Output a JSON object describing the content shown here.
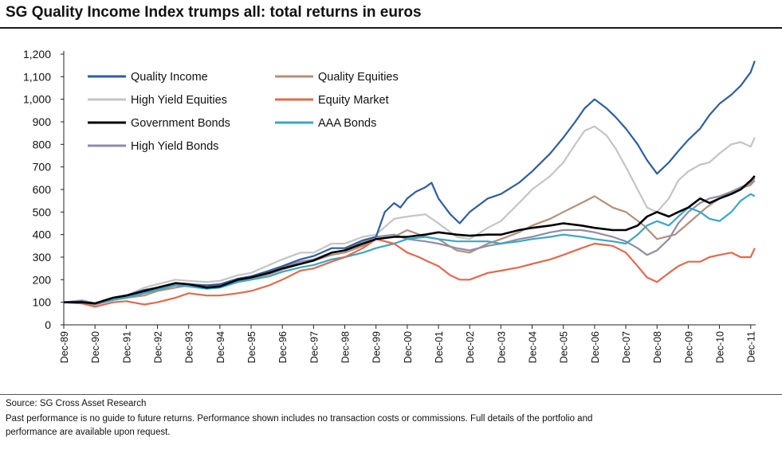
{
  "chart_data": {
    "type": "line",
    "title": "SG Quality Income Index trumps all: total returns in euros",
    "xlabel": "",
    "ylabel": "",
    "ylim": [
      0,
      1200
    ],
    "yticks": [
      "0",
      "100",
      "200",
      "300",
      "400",
      "500",
      "600",
      "700",
      "800",
      "900",
      "1,000",
      "1,100",
      "1,200"
    ],
    "xlim": [
      1989.92,
      2012.08
    ],
    "xticks": [
      "Dec-89",
      "Dec-90",
      "Dec-91",
      "Dec-92",
      "Dec-93",
      "Dec-94",
      "Dec-95",
      "Dec-96",
      "Dec-97",
      "Dec-98",
      "Dec-99",
      "Dec-00",
      "Dec-01",
      "Dec-02",
      "Dec-03",
      "Dec-04",
      "Dec-05",
      "Dec-06",
      "Dec-07",
      "Dec-08",
      "Dec-09",
      "Dec-10",
      "Dec-11"
    ],
    "grid": false,
    "legend_placement": "top-left",
    "series": [
      {
        "name": "Quality Income",
        "color": "#2e5e9e",
        "x": [
          1989.92,
          1990.5,
          1990.92,
          1991.5,
          1991.92,
          1992.5,
          1992.92,
          1993.5,
          1993.92,
          1994.5,
          1994.92,
          1995.5,
          1995.92,
          1996.5,
          1996.92,
          1997.5,
          1997.92,
          1998.5,
          1998.92,
          1999.5,
          1999.92,
          2000.2,
          2000.5,
          2000.7,
          2000.92,
          2001.2,
          2001.5,
          2001.7,
          2001.92,
          2002.3,
          2002.6,
          2002.92,
          2003.5,
          2003.92,
          2004.5,
          2004.92,
          2005.5,
          2005.92,
          2006.3,
          2006.6,
          2006.92,
          2007.3,
          2007.6,
          2007.92,
          2008.3,
          2008.6,
          2008.92,
          2009.3,
          2009.6,
          2009.92,
          2010.3,
          2010.6,
          2010.92,
          2011.3,
          2011.6,
          2011.92,
          2012.05
        ],
        "y": [
          100,
          105,
          95,
          120,
          130,
          155,
          165,
          185,
          180,
          175,
          180,
          205,
          215,
          240,
          260,
          290,
          305,
          340,
          340,
          375,
          390,
          500,
          540,
          520,
          560,
          590,
          610,
          630,
          560,
          490,
          450,
          500,
          560,
          580,
          630,
          680,
          760,
          830,
          900,
          960,
          1000,
          960,
          920,
          870,
          800,
          730,
          670,
          720,
          770,
          820,
          870,
          930,
          980,
          1020,
          1060,
          1120,
          1170
        ]
      },
      {
        "name": "Quality Equities",
        "color": "#b38f7c",
        "x": [
          1989.92,
          1990.5,
          1990.92,
          1991.5,
          1991.92,
          1992.5,
          1992.92,
          1993.5,
          1993.92,
          1994.5,
          1994.92,
          1995.5,
          1995.92,
          1996.5,
          1996.92,
          1997.5,
          1997.92,
          1998.5,
          1998.92,
          1999.5,
          1999.92,
          2000.5,
          2000.92,
          2001.5,
          2001.92,
          2002.5,
          2002.92,
          2003.5,
          2003.92,
          2004.5,
          2004.92,
          2005.5,
          2005.92,
          2006.5,
          2006.92,
          2007.5,
          2007.92,
          2008.5,
          2008.92,
          2009.5,
          2009.92,
          2010.5,
          2010.92,
          2011.5,
          2011.92,
          2012.05
        ],
        "y": [
          100,
          100,
          90,
          110,
          120,
          130,
          150,
          165,
          175,
          170,
          170,
          190,
          205,
          225,
          245,
          270,
          285,
          310,
          320,
          350,
          380,
          390,
          420,
          390,
          380,
          330,
          320,
          360,
          380,
          410,
          440,
          470,
          500,
          540,
          570,
          520,
          500,
          440,
          380,
          400,
          450,
          520,
          560,
          600,
          620,
          640
        ]
      },
      {
        "name": "High Yield Equities",
        "color": "#c4c4c4",
        "x": [
          1989.92,
          1990.5,
          1990.92,
          1991.5,
          1991.92,
          1992.5,
          1992.92,
          1993.5,
          1993.92,
          1994.5,
          1994.92,
          1995.5,
          1995.92,
          1996.5,
          1996.92,
          1997.5,
          1997.92,
          1998.5,
          1998.92,
          1999.5,
          1999.92,
          2000.5,
          2000.92,
          2001.5,
          2001.92,
          2002.5,
          2002.92,
          2003.5,
          2003.92,
          2004.5,
          2004.92,
          2005.5,
          2005.92,
          2006.3,
          2006.6,
          2006.92,
          2007.3,
          2007.6,
          2007.92,
          2008.3,
          2008.6,
          2008.92,
          2009.3,
          2009.6,
          2009.92,
          2010.3,
          2010.6,
          2010.92,
          2011.3,
          2011.6,
          2011.92,
          2012.05
        ],
        "y": [
          100,
          110,
          95,
          120,
          130,
          165,
          180,
          200,
          195,
          190,
          195,
          220,
          230,
          265,
          290,
          320,
          320,
          360,
          360,
          390,
          400,
          470,
          480,
          490,
          450,
          390,
          380,
          430,
          460,
          540,
          600,
          660,
          720,
          800,
          860,
          880,
          840,
          780,
          700,
          600,
          520,
          500,
          560,
          640,
          680,
          710,
          720,
          760,
          800,
          810,
          790,
          830
        ]
      },
      {
        "name": "Equity Market",
        "color": "#e06a4e",
        "x": [
          1989.92,
          1990.5,
          1990.92,
          1991.5,
          1991.92,
          1992.5,
          1992.92,
          1993.5,
          1993.92,
          1994.5,
          1994.92,
          1995.5,
          1995.92,
          1996.5,
          1996.92,
          1997.5,
          1997.92,
          1998.5,
          1998.92,
          1999.5,
          1999.92,
          2000.5,
          2000.92,
          2001.3,
          2001.6,
          2001.92,
          2002.3,
          2002.6,
          2002.92,
          2003.5,
          2003.92,
          2004.5,
          2004.92,
          2005.5,
          2005.92,
          2006.5,
          2006.92,
          2007.5,
          2007.92,
          2008.3,
          2008.6,
          2008.92,
          2009.3,
          2009.6,
          2009.92,
          2010.3,
          2010.6,
          2010.92,
          2011.3,
          2011.6,
          2011.92,
          2012.05
        ],
        "y": [
          100,
          95,
          80,
          100,
          105,
          90,
          100,
          120,
          140,
          130,
          130,
          140,
          150,
          175,
          200,
          240,
          250,
          280,
          300,
          340,
          380,
          360,
          320,
          300,
          280,
          260,
          220,
          200,
          200,
          230,
          240,
          255,
          270,
          290,
          310,
          340,
          360,
          350,
          320,
          260,
          210,
          190,
          230,
          260,
          280,
          280,
          300,
          310,
          320,
          300,
          300,
          340
        ]
      },
      {
        "name": "Government Bonds",
        "color": "#000000",
        "x": [
          1989.92,
          1990.5,
          1990.92,
          1991.5,
          1991.92,
          1992.5,
          1992.92,
          1993.5,
          1993.92,
          1994.5,
          1994.92,
          1995.5,
          1995.92,
          1996.5,
          1996.92,
          1997.5,
          1997.92,
          1998.5,
          1998.92,
          1999.5,
          1999.92,
          2000.5,
          2000.92,
          2001.5,
          2001.92,
          2002.5,
          2002.92,
          2003.5,
          2003.92,
          2004.5,
          2004.92,
          2005.5,
          2005.92,
          2006.5,
          2006.92,
          2007.5,
          2007.92,
          2008.3,
          2008.6,
          2008.92,
          2009.3,
          2009.6,
          2009.92,
          2010.3,
          2010.6,
          2010.92,
          2011.3,
          2011.6,
          2011.92,
          2012.05
        ],
        "y": [
          100,
          100,
          95,
          120,
          130,
          150,
          165,
          185,
          180,
          165,
          170,
          200,
          210,
          230,
          250,
          270,
          285,
          320,
          330,
          360,
          380,
          390,
          390,
          400,
          410,
          400,
          395,
          400,
          400,
          420,
          430,
          440,
          450,
          440,
          430,
          420,
          420,
          440,
          480,
          500,
          480,
          500,
          520,
          560,
          540,
          560,
          580,
          600,
          640,
          660
        ]
      },
      {
        "name": "AAA Bonds",
        "color": "#3aa6c6",
        "x": [
          1989.92,
          1990.5,
          1990.92,
          1991.5,
          1991.92,
          1992.5,
          1992.92,
          1993.5,
          1993.92,
          1994.5,
          1994.92,
          1995.5,
          1995.92,
          1996.5,
          1996.92,
          1997.5,
          1997.92,
          1998.5,
          1998.92,
          1999.5,
          1999.92,
          2000.5,
          2000.92,
          2001.5,
          2001.92,
          2002.5,
          2002.92,
          2003.5,
          2003.92,
          2004.5,
          2004.92,
          2005.5,
          2005.92,
          2006.5,
          2006.92,
          2007.5,
          2007.92,
          2008.3,
          2008.6,
          2008.92,
          2009.3,
          2009.6,
          2009.92,
          2010.3,
          2010.6,
          2010.92,
          2011.3,
          2011.6,
          2011.92,
          2012.05
        ],
        "y": [
          100,
          100,
          95,
          110,
          120,
          140,
          155,
          175,
          170,
          160,
          165,
          190,
          200,
          215,
          235,
          255,
          265,
          290,
          300,
          320,
          340,
          360,
          380,
          390,
          380,
          370,
          370,
          370,
          360,
          370,
          380,
          390,
          400,
          390,
          380,
          370,
          360,
          400,
          440,
          460,
          440,
          480,
          520,
          500,
          470,
          460,
          500,
          550,
          580,
          570
        ]
      },
      {
        "name": "High Yield Bonds",
        "color": "#8e8ea6",
        "x": [
          1989.92,
          1990.5,
          1990.92,
          1991.5,
          1991.92,
          1992.5,
          1992.92,
          1993.5,
          1993.92,
          1994.5,
          1994.92,
          1995.5,
          1995.92,
          1996.5,
          1996.92,
          1997.5,
          1997.92,
          1998.5,
          1998.92,
          1999.5,
          1999.92,
          2000.5,
          2000.92,
          2001.5,
          2001.92,
          2002.5,
          2002.92,
          2003.5,
          2003.92,
          2004.5,
          2004.92,
          2005.5,
          2005.92,
          2006.5,
          2006.92,
          2007.5,
          2007.92,
          2008.3,
          2008.6,
          2008.92,
          2009.3,
          2009.6,
          2009.92,
          2010.3,
          2010.6,
          2010.92,
          2011.3,
          2011.6,
          2011.92,
          2012.05
        ],
        "y": [
          100,
          95,
          90,
          110,
          125,
          145,
          160,
          180,
          175,
          170,
          175,
          195,
          210,
          235,
          255,
          280,
          290,
          320,
          330,
          370,
          390,
          400,
          380,
          370,
          360,
          340,
          330,
          350,
          360,
          380,
          390,
          410,
          420,
          420,
          410,
          390,
          370,
          340,
          310,
          330,
          380,
          450,
          500,
          540,
          560,
          570,
          590,
          610,
          630,
          650
        ]
      }
    ]
  },
  "footer": {
    "source": "Source: SG Cross Asset Research",
    "note_line1": "Past performance is no guide to future returns. Performance shown includes no transaction costs or commissions. Full details of the portfolio and",
    "note_line2": "performance are available upon request."
  }
}
